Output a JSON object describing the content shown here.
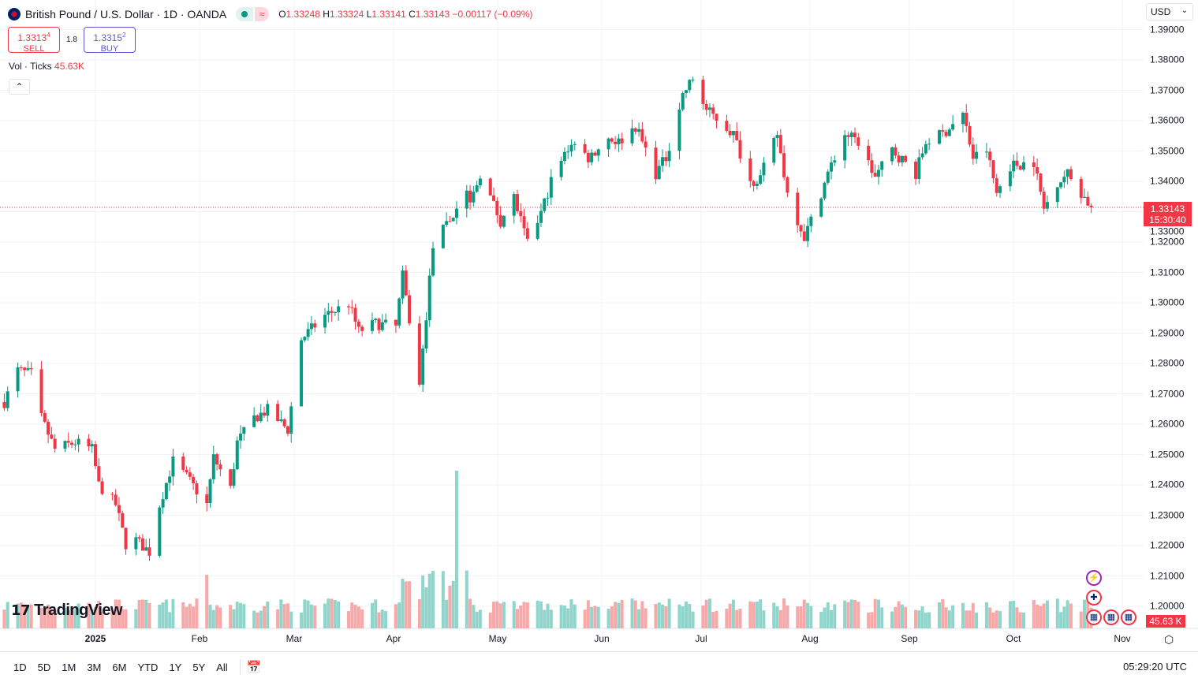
{
  "header": {
    "symbol": "British Pound / U.S. Dollar · 1D · OANDA",
    "open_label": "O",
    "open": "1.33248",
    "high_label": "H",
    "high": "1.33324",
    "low_label": "L",
    "low": "1.33141",
    "close_label": "C",
    "close": "1.33143",
    "change": "−0.00117 (−0.09%)",
    "market_status_icon": "≈"
  },
  "trade": {
    "sell_price": "1.3313",
    "sell_sup": "4",
    "sell_label": "SELL",
    "spread": "1.8",
    "buy_price": "1.3315",
    "buy_sup": "2",
    "buy_label": "BUY"
  },
  "volume": {
    "label": "Vol · Ticks",
    "value": "45.63K",
    "axis_value": "45.63 K"
  },
  "currency": "USD",
  "last_price": {
    "price": "1.33143",
    "countdown": "15:30:40"
  },
  "time_axis": [
    "2025",
    "Feb",
    "Mar",
    "Apr",
    "May",
    "Jun",
    "Jul",
    "Aug",
    "Sep",
    "Oct",
    "Nov"
  ],
  "ranges": [
    "1D",
    "5D",
    "1M",
    "3M",
    "6M",
    "YTD",
    "1Y",
    "5Y",
    "All"
  ],
  "clock": "05:29:20 UTC",
  "logo": "TradingView",
  "colors": {
    "up": "#089981",
    "down": "#f23645",
    "vol_up": "#8fd5cb",
    "vol_down": "#f7a8a8"
  },
  "chart_data": {
    "type": "candlestick",
    "ylim": [
      1.19,
      1.39
    ],
    "y_ticks": [
      "1.39000",
      "1.38000",
      "1.37000",
      "1.36000",
      "1.35000",
      "1.34000",
      "1.33000",
      "1.32000",
      "1.31000",
      "1.30000",
      "1.29000",
      "1.28000",
      "1.27000",
      "1.26000",
      "1.25000",
      "1.24000",
      "1.23000",
      "1.22000",
      "1.21000",
      "1.20000"
    ],
    "grid": true,
    "closes": [
      [
        "2024-12-05",
        1.2673
      ],
      [
        "2024-12-09",
        1.2777
      ],
      [
        "2024-12-13",
        1.2764
      ],
      [
        "2024-12-16",
        1.262
      ],
      [
        "2024-12-20",
        1.2517
      ],
      [
        "2024-12-26",
        1.254
      ],
      [
        "2024-12-31",
        1.2517
      ],
      [
        "2025-01-02",
        1.24
      ],
      [
        "2025-01-07",
        1.2335
      ],
      [
        "2025-01-10",
        1.2205
      ],
      [
        "2025-01-13",
        1.2218
      ],
      [
        "2025-01-17",
        1.2179
      ],
      [
        "2025-01-20",
        1.2335
      ],
      [
        "2025-01-24",
        1.2478
      ],
      [
        "2025-01-28",
        1.2426
      ],
      [
        "2025-02-03",
        1.2335
      ],
      [
        "2025-02-05",
        1.249
      ],
      [
        "2025-02-10",
        1.2387
      ],
      [
        "2025-02-12",
        1.254
      ],
      [
        "2025-02-17",
        1.262
      ],
      [
        "2025-02-21",
        1.2647
      ],
      [
        "2025-02-27",
        1.2582
      ],
      [
        "2025-03-03",
        1.288
      ],
      [
        "2025-03-10",
        1.2958
      ],
      [
        "2025-03-17",
        1.2997
      ],
      [
        "2025-03-20",
        1.2906
      ],
      [
        "2025-03-25",
        1.2932
      ],
      [
        "2025-03-31",
        1.292
      ],
      [
        "2025-04-02",
        1.3088
      ],
      [
        "2025-04-07",
        1.2725
      ],
      [
        "2025-04-09",
        1.2958
      ],
      [
        "2025-04-11",
        1.3192
      ],
      [
        "2025-04-16",
        1.327
      ],
      [
        "2025-04-21",
        1.3374
      ],
      [
        "2025-04-22",
        1.3322
      ],
      [
        "2025-04-25",
        1.3426
      ],
      [
        "2025-05-01",
        1.327
      ],
      [
        "2025-05-05",
        1.3348
      ],
      [
        "2025-05-09",
        1.3192
      ],
      [
        "2025-05-13",
        1.3296
      ],
      [
        "2025-05-16",
        1.34
      ],
      [
        "2025-05-22",
        1.353
      ],
      [
        "2025-05-27",
        1.3478
      ],
      [
        "2025-06-02",
        1.3543
      ],
      [
        "2025-06-05",
        1.353
      ],
      [
        "2025-06-10",
        1.3582
      ],
      [
        "2025-06-16",
        1.3426
      ],
      [
        "2025-06-19",
        1.3478
      ],
      [
        "2025-06-24",
        1.3686
      ],
      [
        "2025-06-27",
        1.3738
      ],
      [
        "2025-07-01",
        1.3634
      ],
      [
        "2025-07-04",
        1.3608
      ],
      [
        "2025-07-09",
        1.3556
      ],
      [
        "2025-07-14",
        1.34
      ],
      [
        "2025-07-17",
        1.3413
      ],
      [
        "2025-07-22",
        1.3556
      ],
      [
        "2025-07-25",
        1.3361
      ],
      [
        "2025-07-30",
        1.3218
      ],
      [
        "2025-08-01",
        1.327
      ],
      [
        "2025-08-06",
        1.3426
      ],
      [
        "2025-08-11",
        1.3556
      ],
      [
        "2025-08-15",
        1.353
      ],
      [
        "2025-08-20",
        1.3413
      ],
      [
        "2025-08-25",
        1.3504
      ],
      [
        "2025-09-01",
        1.3426
      ],
      [
        "2025-09-04",
        1.353
      ],
      [
        "2025-09-09",
        1.3556
      ],
      [
        "2025-09-15",
        1.3621
      ],
      [
        "2025-09-18",
        1.3478
      ],
      [
        "2025-09-22",
        1.3504
      ],
      [
        "2025-09-25",
        1.3361
      ],
      [
        "2025-09-29",
        1.3452
      ],
      [
        "2025-10-06",
        1.3465
      ],
      [
        "2025-10-09",
        1.3309
      ],
      [
        "2025-10-13",
        1.34
      ],
      [
        "2025-10-16",
        1.3426
      ],
      [
        "2025-10-23",
        1.33143
      ]
    ]
  }
}
